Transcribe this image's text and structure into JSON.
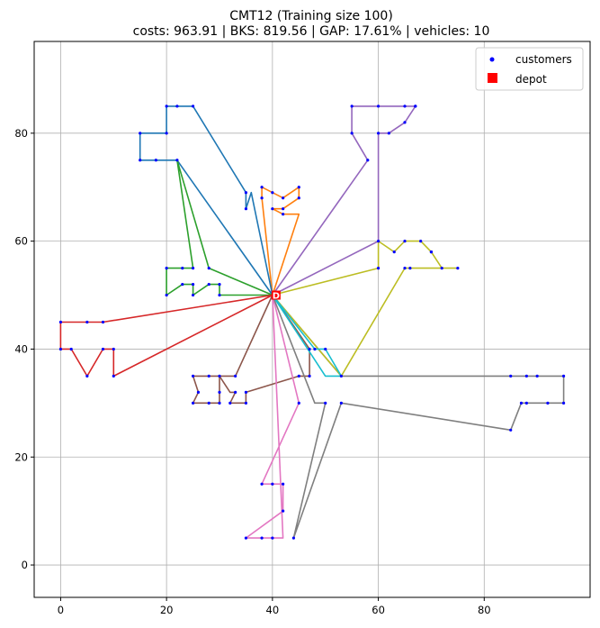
{
  "chart_data": {
    "type": "scatter",
    "title_line1": "CMT12 (Training size 100)",
    "title_line2": "costs: 963.91 | BKS: 819.56 | GAP: 17.61% | vehicles: 10",
    "xlabel": "",
    "ylabel": "",
    "xlim": [
      -5,
      100
    ],
    "ylim": [
      -6,
      97
    ],
    "xticks": [
      0,
      20,
      40,
      60,
      80
    ],
    "yticks": [
      0,
      20,
      40,
      60,
      80
    ],
    "grid": true,
    "legend_position": "top-right",
    "legend": [
      {
        "label": "customers",
        "marker": "dot",
        "color": "#0000ff"
      },
      {
        "label": "depot",
        "marker": "square",
        "color": "#ff0000"
      }
    ],
    "depot": {
      "x": 40,
      "y": 50,
      "label": "D"
    },
    "customers": [
      [
        45,
        68
      ],
      [
        45,
        70
      ],
      [
        42,
        66
      ],
      [
        42,
        68
      ],
      [
        42,
        65
      ],
      [
        40,
        66
      ],
      [
        40,
        69
      ],
      [
        38,
        68
      ],
      [
        38,
        70
      ],
      [
        35,
        66
      ],
      [
        35,
        69
      ],
      [
        25,
        85
      ],
      [
        22,
        75
      ],
      [
        22,
        85
      ],
      [
        20,
        80
      ],
      [
        20,
        85
      ],
      [
        18,
        75
      ],
      [
        15,
        75
      ],
      [
        15,
        80
      ],
      [
        30,
        50
      ],
      [
        30,
        52
      ],
      [
        28,
        52
      ],
      [
        28,
        55
      ],
      [
        25,
        50
      ],
      [
        25,
        52
      ],
      [
        25,
        55
      ],
      [
        23,
        52
      ],
      [
        23,
        55
      ],
      [
        20,
        50
      ],
      [
        20,
        55
      ],
      [
        10,
        35
      ],
      [
        10,
        40
      ],
      [
        8,
        40
      ],
      [
        8,
        45
      ],
      [
        5,
        35
      ],
      [
        5,
        45
      ],
      [
        2,
        40
      ],
      [
        0,
        40
      ],
      [
        0,
        45
      ],
      [
        35,
        30
      ],
      [
        35,
        32
      ],
      [
        33,
        32
      ],
      [
        33,
        35
      ],
      [
        32,
        30
      ],
      [
        30,
        30
      ],
      [
        30,
        32
      ],
      [
        30,
        35
      ],
      [
        28,
        30
      ],
      [
        28,
        35
      ],
      [
        26,
        32
      ],
      [
        25,
        30
      ],
      [
        25,
        35
      ],
      [
        44,
        5
      ],
      [
        42,
        10
      ],
      [
        42,
        15
      ],
      [
        40,
        5
      ],
      [
        40,
        15
      ],
      [
        38,
        5
      ],
      [
        38,
        15
      ],
      [
        35,
        5
      ],
      [
        95,
        30
      ],
      [
        95,
        35
      ],
      [
        92,
        30
      ],
      [
        90,
        35
      ],
      [
        88,
        30
      ],
      [
        88,
        35
      ],
      [
        87,
        30
      ],
      [
        85,
        25
      ],
      [
        85,
        35
      ],
      [
        67,
        85
      ],
      [
        65,
        85
      ],
      [
        65,
        82
      ],
      [
        62,
        80
      ],
      [
        60,
        80
      ],
      [
        60,
        85
      ],
      [
        58,
        75
      ],
      [
        55,
        80
      ],
      [
        55,
        85
      ],
      [
        75,
        55
      ],
      [
        72,
        55
      ],
      [
        70,
        58
      ],
      [
        68,
        60
      ],
      [
        66,
        55
      ],
      [
        65,
        55
      ],
      [
        65,
        60
      ],
      [
        63,
        58
      ],
      [
        60,
        55
      ],
      [
        60,
        60
      ],
      [
        67,
        85
      ],
      [
        70,
        58
      ],
      [
        48,
        40
      ],
      [
        50,
        40
      ],
      [
        50,
        30
      ],
      [
        53,
        30
      ],
      [
        53,
        35
      ],
      [
        47,
        35
      ],
      [
        47,
        40
      ],
      [
        45,
        35
      ],
      [
        45,
        30
      ]
    ],
    "series": [
      {
        "color": "#ff7f0e",
        "points": [
          [
            40,
            50
          ],
          [
            38,
            68
          ],
          [
            38,
            70
          ],
          [
            40,
            69
          ],
          [
            42,
            68
          ],
          [
            45,
            70
          ],
          [
            45,
            68
          ],
          [
            42,
            66
          ],
          [
            40,
            66
          ],
          [
            42,
            65
          ],
          [
            45,
            65
          ],
          [
            40,
            50
          ]
        ]
      },
      {
        "color": "#1f77b4",
        "points": [
          [
            40,
            50
          ],
          [
            36,
            69
          ],
          [
            35,
            66
          ],
          [
            35,
            69
          ],
          [
            25,
            85
          ],
          [
            22,
            85
          ],
          [
            20,
            85
          ],
          [
            20,
            80
          ],
          [
            15,
            80
          ],
          [
            15,
            75
          ],
          [
            18,
            75
          ],
          [
            22,
            75
          ],
          [
            40,
            50
          ]
        ]
      },
      {
        "color": "#2ca02c",
        "points": [
          [
            40,
            50
          ],
          [
            28,
            55
          ],
          [
            22,
            75
          ],
          [
            25,
            55
          ],
          [
            23,
            55
          ],
          [
            20,
            55
          ],
          [
            20,
            50
          ],
          [
            23,
            52
          ],
          [
            25,
            52
          ],
          [
            25,
            50
          ],
          [
            28,
            52
          ],
          [
            30,
            52
          ],
          [
            30,
            50
          ],
          [
            40,
            50
          ]
        ]
      },
      {
        "color": "#d62728",
        "points": [
          [
            40,
            50
          ],
          [
            8,
            45
          ],
          [
            5,
            45
          ],
          [
            0,
            45
          ],
          [
            0,
            40
          ],
          [
            2,
            40
          ],
          [
            5,
            35
          ],
          [
            8,
            40
          ],
          [
            10,
            40
          ],
          [
            10,
            35
          ],
          [
            40,
            50
          ]
        ]
      },
      {
        "color": "#8c564b",
        "points": [
          [
            40,
            50
          ],
          [
            33,
            35
          ],
          [
            30,
            35
          ],
          [
            28,
            35
          ],
          [
            25,
            35
          ],
          [
            26,
            32
          ],
          [
            25,
            30
          ],
          [
            28,
            30
          ],
          [
            30,
            30
          ],
          [
            30,
            32
          ],
          [
            30,
            35
          ],
          [
            32,
            32
          ],
          [
            33,
            32
          ],
          [
            32,
            30
          ],
          [
            35,
            30
          ],
          [
            35,
            32
          ],
          [
            45,
            35
          ],
          [
            47,
            35
          ],
          [
            47,
            40
          ],
          [
            40,
            50
          ]
        ]
      },
      {
        "color": "#e377c2",
        "points": [
          [
            40,
            50
          ],
          [
            45,
            30
          ],
          [
            38,
            15
          ],
          [
            40,
            15
          ],
          [
            42,
            15
          ],
          [
            42,
            10
          ],
          [
            35,
            5
          ],
          [
            38,
            5
          ],
          [
            40,
            5
          ],
          [
            42,
            5
          ],
          [
            40,
            50
          ]
        ]
      },
      {
        "color": "#7f7f7f",
        "points": [
          [
            40,
            50
          ],
          [
            48,
            30
          ],
          [
            50,
            30
          ],
          [
            44,
            5
          ],
          [
            53,
            30
          ],
          [
            85,
            25
          ],
          [
            87,
            30
          ],
          [
            88,
            30
          ],
          [
            92,
            30
          ],
          [
            95,
            30
          ],
          [
            95,
            35
          ],
          [
            90,
            35
          ],
          [
            88,
            35
          ],
          [
            85,
            35
          ],
          [
            53,
            35
          ],
          [
            40,
            50
          ]
        ]
      },
      {
        "color": "#9467bd",
        "points": [
          [
            40,
            50
          ],
          [
            58,
            75
          ],
          [
            55,
            80
          ],
          [
            55,
            85
          ],
          [
            60,
            85
          ],
          [
            65,
            85
          ],
          [
            67,
            85
          ],
          [
            65,
            82
          ],
          [
            62,
            80
          ],
          [
            60,
            80
          ],
          [
            60,
            60
          ],
          [
            40,
            50
          ]
        ]
      },
      {
        "color": "#bcbd22",
        "points": [
          [
            40,
            50
          ],
          [
            60,
            55
          ],
          [
            60,
            60
          ],
          [
            63,
            58
          ],
          [
            65,
            60
          ],
          [
            68,
            60
          ],
          [
            70,
            58
          ],
          [
            72,
            55
          ],
          [
            75,
            55
          ],
          [
            66,
            55
          ],
          [
            65,
            55
          ],
          [
            53,
            35
          ],
          [
            40,
            50
          ]
        ]
      },
      {
        "color": "#17becf",
        "points": [
          [
            40,
            50
          ],
          [
            48,
            40
          ],
          [
            50,
            40
          ],
          [
            53,
            35
          ],
          [
            50,
            35
          ],
          [
            40,
            50
          ]
        ]
      }
    ]
  }
}
